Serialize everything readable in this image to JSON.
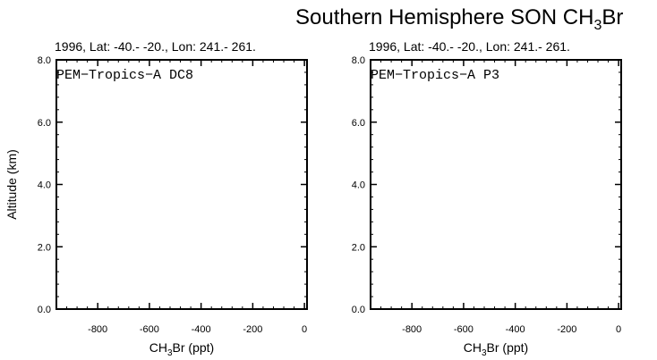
{
  "figure": {
    "title_main": "Southern Hemisphere SON CH",
    "title_sub": "3",
    "title_tail": "Br"
  },
  "chart_data": [
    {
      "type": "line",
      "subtitle": "1996, Lat: -40.- -20., Lon: 241.- 261.",
      "annotation": "PEM−Tropics−A DC8",
      "ylabel": "Altitude (km)",
      "xlabel_main": "CH",
      "xlabel_sub": "3",
      "xlabel_tail": "Br (ppt)",
      "xlim": [
        -960,
        10
      ],
      "ylim": [
        0,
        8
      ],
      "x_ticks": [
        -800,
        -600,
        -400,
        -200,
        0
      ],
      "x_tick_labels": [
        "-800",
        "-600",
        "-400",
        "-200",
        "0"
      ],
      "y_ticks": [
        0,
        2,
        4,
        6,
        8
      ],
      "y_tick_labels": [
        "0.0",
        "2.0",
        "4.0",
        "6.0",
        "8.0"
      ],
      "series": []
    },
    {
      "type": "line",
      "subtitle": "1996, Lat: -40.- -20., Lon: 241.- 261.",
      "annotation": "PEM−Tropics−A P3",
      "ylabel": "",
      "xlabel_main": "CH",
      "xlabel_sub": "3",
      "xlabel_tail": "Br (ppt)",
      "xlim": [
        -960,
        10
      ],
      "ylim": [
        0,
        8
      ],
      "x_ticks": [
        -800,
        -600,
        -400,
        -200,
        0
      ],
      "x_tick_labels": [
        "-800",
        "-600",
        "-400",
        "-200",
        "0"
      ],
      "y_ticks": [
        0,
        2,
        4,
        6,
        8
      ],
      "y_tick_labels": [
        "0.0",
        "2.0",
        "4.0",
        "6.0",
        "8.0"
      ],
      "series": []
    }
  ]
}
